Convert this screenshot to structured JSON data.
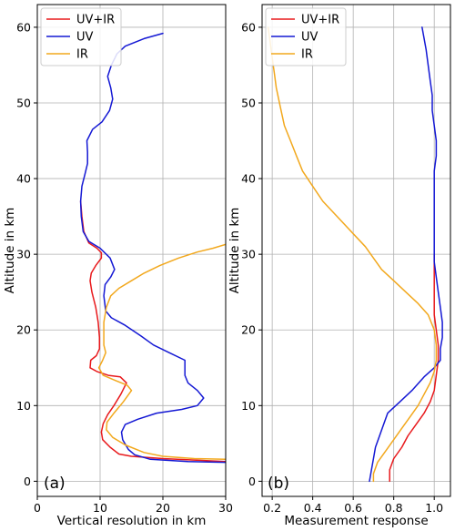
{
  "chart_data": [
    {
      "type": "line",
      "panel_label": "(a)",
      "xlabel": "Vertical resolution in km",
      "ylabel": "Altitude in km",
      "xlim": [
        0,
        30
      ],
      "ylim": [
        -2,
        63
      ],
      "xticks": [
        0,
        10,
        20,
        30
      ],
      "yticks": [
        0,
        10,
        20,
        30,
        40,
        50,
        60
      ],
      "grid": true,
      "legend": "top-left",
      "series": [
        {
          "name": "UV+IR",
          "color": "#e8191c",
          "points": [
            [
              30,
              2.6
            ],
            [
              25,
              2.8
            ],
            [
              20,
              3
            ],
            [
              15,
              3.3
            ],
            [
              13,
              3.6
            ],
            [
              11.6,
              4.5
            ],
            [
              10.4,
              5.5
            ],
            [
              10.2,
              6.5
            ],
            [
              10.5,
              7.6
            ],
            [
              11.2,
              8.8
            ],
            [
              12.2,
              10
            ],
            [
              13.3,
              11.5
            ],
            [
              14.2,
              13
            ],
            [
              13.2,
              13.8
            ],
            [
              11.3,
              14
            ],
            [
              9.5,
              14.5
            ],
            [
              8.4,
              15
            ],
            [
              8.5,
              16
            ],
            [
              9.4,
              16.6
            ],
            [
              9.9,
              17.5
            ],
            [
              9.9,
              19
            ],
            [
              9.7,
              21
            ],
            [
              9.3,
              23
            ],
            [
              8.7,
              25
            ],
            [
              8.4,
              26.5
            ],
            [
              8.6,
              27.5
            ],
            [
              9.3,
              28.5
            ],
            [
              10.2,
              29.5
            ],
            [
              10.2,
              30.2
            ],
            [
              9.5,
              30.8
            ],
            [
              8.2,
              31.5
            ],
            [
              7.4,
              33
            ],
            [
              7.1,
              35
            ],
            [
              6.9,
              37
            ]
          ]
        },
        {
          "name": "UV",
          "color": "#1418d4",
          "points": [
            [
              30,
              2.5
            ],
            [
              24,
              2.6
            ],
            [
              18,
              2.9
            ],
            [
              15.5,
              3.5
            ],
            [
              14.5,
              4.2
            ],
            [
              13.6,
              5.5
            ],
            [
              13.4,
              6.5
            ],
            [
              14,
              7.5
            ],
            [
              16,
              8.2
            ],
            [
              19,
              9
            ],
            [
              23,
              9.5
            ],
            [
              25.5,
              10
            ],
            [
              26.5,
              11
            ],
            [
              25.5,
              12
            ],
            [
              24,
              13
            ],
            [
              23.5,
              14
            ],
            [
              23.5,
              16
            ],
            [
              21,
              17
            ],
            [
              18.5,
              18
            ],
            [
              16.5,
              19.2
            ],
            [
              14,
              20.6
            ],
            [
              11.8,
              21.6
            ],
            [
              10.9,
              22.5
            ],
            [
              10.6,
              24.5
            ],
            [
              10.8,
              26
            ],
            [
              11.7,
              27
            ],
            [
              12.3,
              28
            ],
            [
              11.6,
              29.5
            ],
            [
              10,
              30.8
            ],
            [
              8.2,
              31.7
            ],
            [
              7.3,
              33
            ],
            [
              7,
              35
            ],
            [
              6.9,
              37
            ],
            [
              7.1,
              39
            ],
            [
              7.6,
              40.6
            ],
            [
              8,
              42
            ],
            [
              8,
              43.5
            ],
            [
              7.9,
              45
            ],
            [
              8.8,
              46.5
            ],
            [
              10.3,
              47.5
            ],
            [
              11.5,
              49
            ],
            [
              12,
              50.5
            ],
            [
              11.7,
              52
            ],
            [
              11.2,
              53.5
            ],
            [
              11.8,
              55
            ],
            [
              12.7,
              56.5
            ],
            [
              14,
              57.5
            ],
            [
              17,
              58.5
            ],
            [
              20,
              59.2
            ]
          ]
        },
        {
          "name": "IR",
          "color": "#f2a81d",
          "points": [
            [
              30,
              2.9
            ],
            [
              25,
              3
            ],
            [
              20,
              3.3
            ],
            [
              17,
              3.8
            ],
            [
              14,
              4.8
            ],
            [
              12,
              5.8
            ],
            [
              11,
              6.8
            ],
            [
              11.1,
              7.8
            ],
            [
              12.2,
              9
            ],
            [
              13.7,
              10.5
            ],
            [
              15,
              12
            ],
            [
              14.3,
              12.7
            ],
            [
              12.5,
              13.3
            ],
            [
              10.5,
              14
            ],
            [
              9.8,
              15
            ],
            [
              10.4,
              16
            ],
            [
              10.9,
              17
            ],
            [
              10.6,
              18
            ],
            [
              10.6,
              19.5
            ],
            [
              10.6,
              21
            ],
            [
              11,
              23
            ],
            [
              11.7,
              24.5
            ],
            [
              13,
              25.5
            ],
            [
              15,
              26.5
            ],
            [
              17,
              27.5
            ],
            [
              19.5,
              28.5
            ],
            [
              22.5,
              29.5
            ],
            [
              25.5,
              30.3
            ],
            [
              28,
              30.8
            ],
            [
              30,
              31.3
            ]
          ]
        }
      ]
    },
    {
      "type": "line",
      "panel_label": "(b)",
      "xlabel": "Measurement response",
      "ylabel": "Altitude in km",
      "xlim": [
        0.15,
        1.08
      ],
      "ylim": [
        -2,
        63
      ],
      "xticks": [
        0.2,
        0.4,
        0.6,
        0.8,
        1.0
      ],
      "xtick_labels": [
        "0.2",
        "0.4",
        "0.6",
        "0.8",
        "1.0"
      ],
      "yticks": [
        0,
        10,
        20,
        30,
        40,
        50,
        60
      ],
      "grid": true,
      "legend": "top-left",
      "series": [
        {
          "name": "UV+IR",
          "color": "#e8191c",
          "points": [
            [
              0.78,
              0
            ],
            [
              0.78,
              1.5
            ],
            [
              0.8,
              3
            ],
            [
              0.84,
              4.5
            ],
            [
              0.87,
              6
            ],
            [
              0.91,
              7.5
            ],
            [
              0.95,
              9
            ],
            [
              0.98,
              10.5
            ],
            [
              1.0,
              12
            ],
            [
              1.01,
              14
            ],
            [
              1.02,
              16
            ],
            [
              1.02,
              18
            ],
            [
              1.01,
              20
            ],
            [
              1.0,
              22
            ],
            [
              1.0,
              24
            ],
            [
              1.0,
              26
            ],
            [
              1.0,
              28
            ],
            [
              1.0,
              30
            ]
          ]
        },
        {
          "name": "UV",
          "color": "#1418d4",
          "points": [
            [
              0.68,
              0
            ],
            [
              0.69,
              1.5
            ],
            [
              0.7,
              3
            ],
            [
              0.71,
              4.5
            ],
            [
              0.73,
              6
            ],
            [
              0.75,
              7.5
            ],
            [
              0.77,
              9
            ],
            [
              0.83,
              10.5
            ],
            [
              0.89,
              12
            ],
            [
              0.95,
              13.8
            ],
            [
              1.0,
              15
            ],
            [
              1.03,
              16
            ],
            [
              1.03,
              17.5
            ],
            [
              1.04,
              19
            ],
            [
              1.04,
              21
            ],
            [
              1.03,
              23
            ],
            [
              1.02,
              25
            ],
            [
              1.01,
              27
            ],
            [
              1.0,
              29
            ],
            [
              1.0,
              31
            ],
            [
              1.0,
              33
            ],
            [
              1.0,
              35
            ],
            [
              1.0,
              37
            ],
            [
              1.0,
              39
            ],
            [
              1.0,
              41
            ],
            [
              1.01,
              43
            ],
            [
              1.01,
              45
            ],
            [
              1.0,
              47
            ],
            [
              0.99,
              49
            ],
            [
              0.99,
              51
            ],
            [
              0.98,
              53
            ],
            [
              0.97,
              55
            ],
            [
              0.96,
              57
            ],
            [
              0.94,
              60
            ]
          ]
        },
        {
          "name": "IR",
          "color": "#f2a81d",
          "points": [
            [
              0.7,
              0
            ],
            [
              0.7,
              1
            ],
            [
              0.72,
              2.5
            ],
            [
              0.76,
              4
            ],
            [
              0.8,
              5.5
            ],
            [
              0.84,
              7
            ],
            [
              0.88,
              8.5
            ],
            [
              0.92,
              10
            ],
            [
              0.95,
              11.5
            ],
            [
              0.98,
              13
            ],
            [
              1.0,
              14.5
            ],
            [
              1.01,
              16
            ],
            [
              1.01,
              18
            ],
            [
              1.0,
              20
            ],
            [
              0.97,
              22
            ],
            [
              0.92,
              23.5
            ],
            [
              0.86,
              25
            ],
            [
              0.8,
              26.5
            ],
            [
              0.74,
              28
            ],
            [
              0.7,
              29.5
            ],
            [
              0.66,
              31
            ],
            [
              0.59,
              33
            ],
            [
              0.52,
              35
            ],
            [
              0.45,
              37
            ],
            [
              0.4,
              39
            ],
            [
              0.35,
              41
            ],
            [
              0.32,
              43
            ],
            [
              0.29,
              45
            ],
            [
              0.26,
              47
            ],
            [
              0.24,
              49.5
            ],
            [
              0.22,
              52
            ],
            [
              0.21,
              54
            ],
            [
              0.2,
              56
            ],
            [
              0.19,
              58
            ],
            [
              0.18,
              60
            ]
          ]
        }
      ]
    }
  ]
}
